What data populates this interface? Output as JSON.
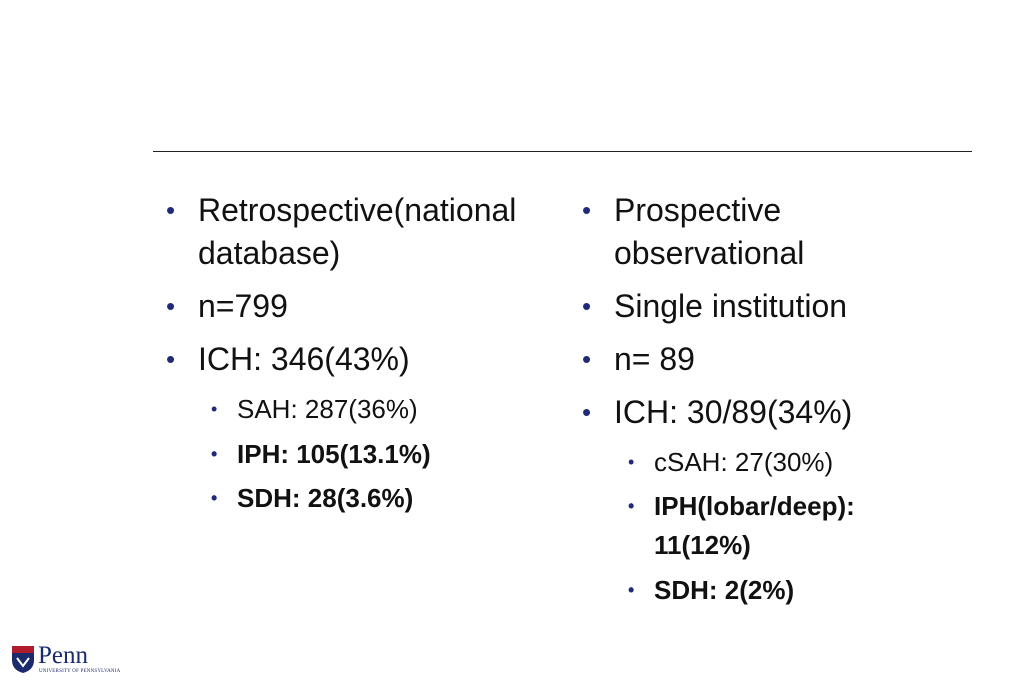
{
  "left": {
    "items": [
      "Retrospective(national database)",
      "n=799",
      "ICH: 346(43%)"
    ],
    "subitems": [
      "SAH: 287(36%)",
      "IPH: 105(13.1%)",
      "SDH: 28(3.6%)"
    ]
  },
  "right": {
    "items": [
      "Prospective observational",
      "Single institution",
      "n= 89",
      "ICH: 30/89(34%)"
    ],
    "subitems": [
      "cSAH: 27(30%)",
      "IPH(lobar/deep): 11(12%)",
      "SDH: 2(2%)"
    ]
  },
  "logo": {
    "name": "Penn",
    "subtitle": "University of Pennsylvania"
  }
}
